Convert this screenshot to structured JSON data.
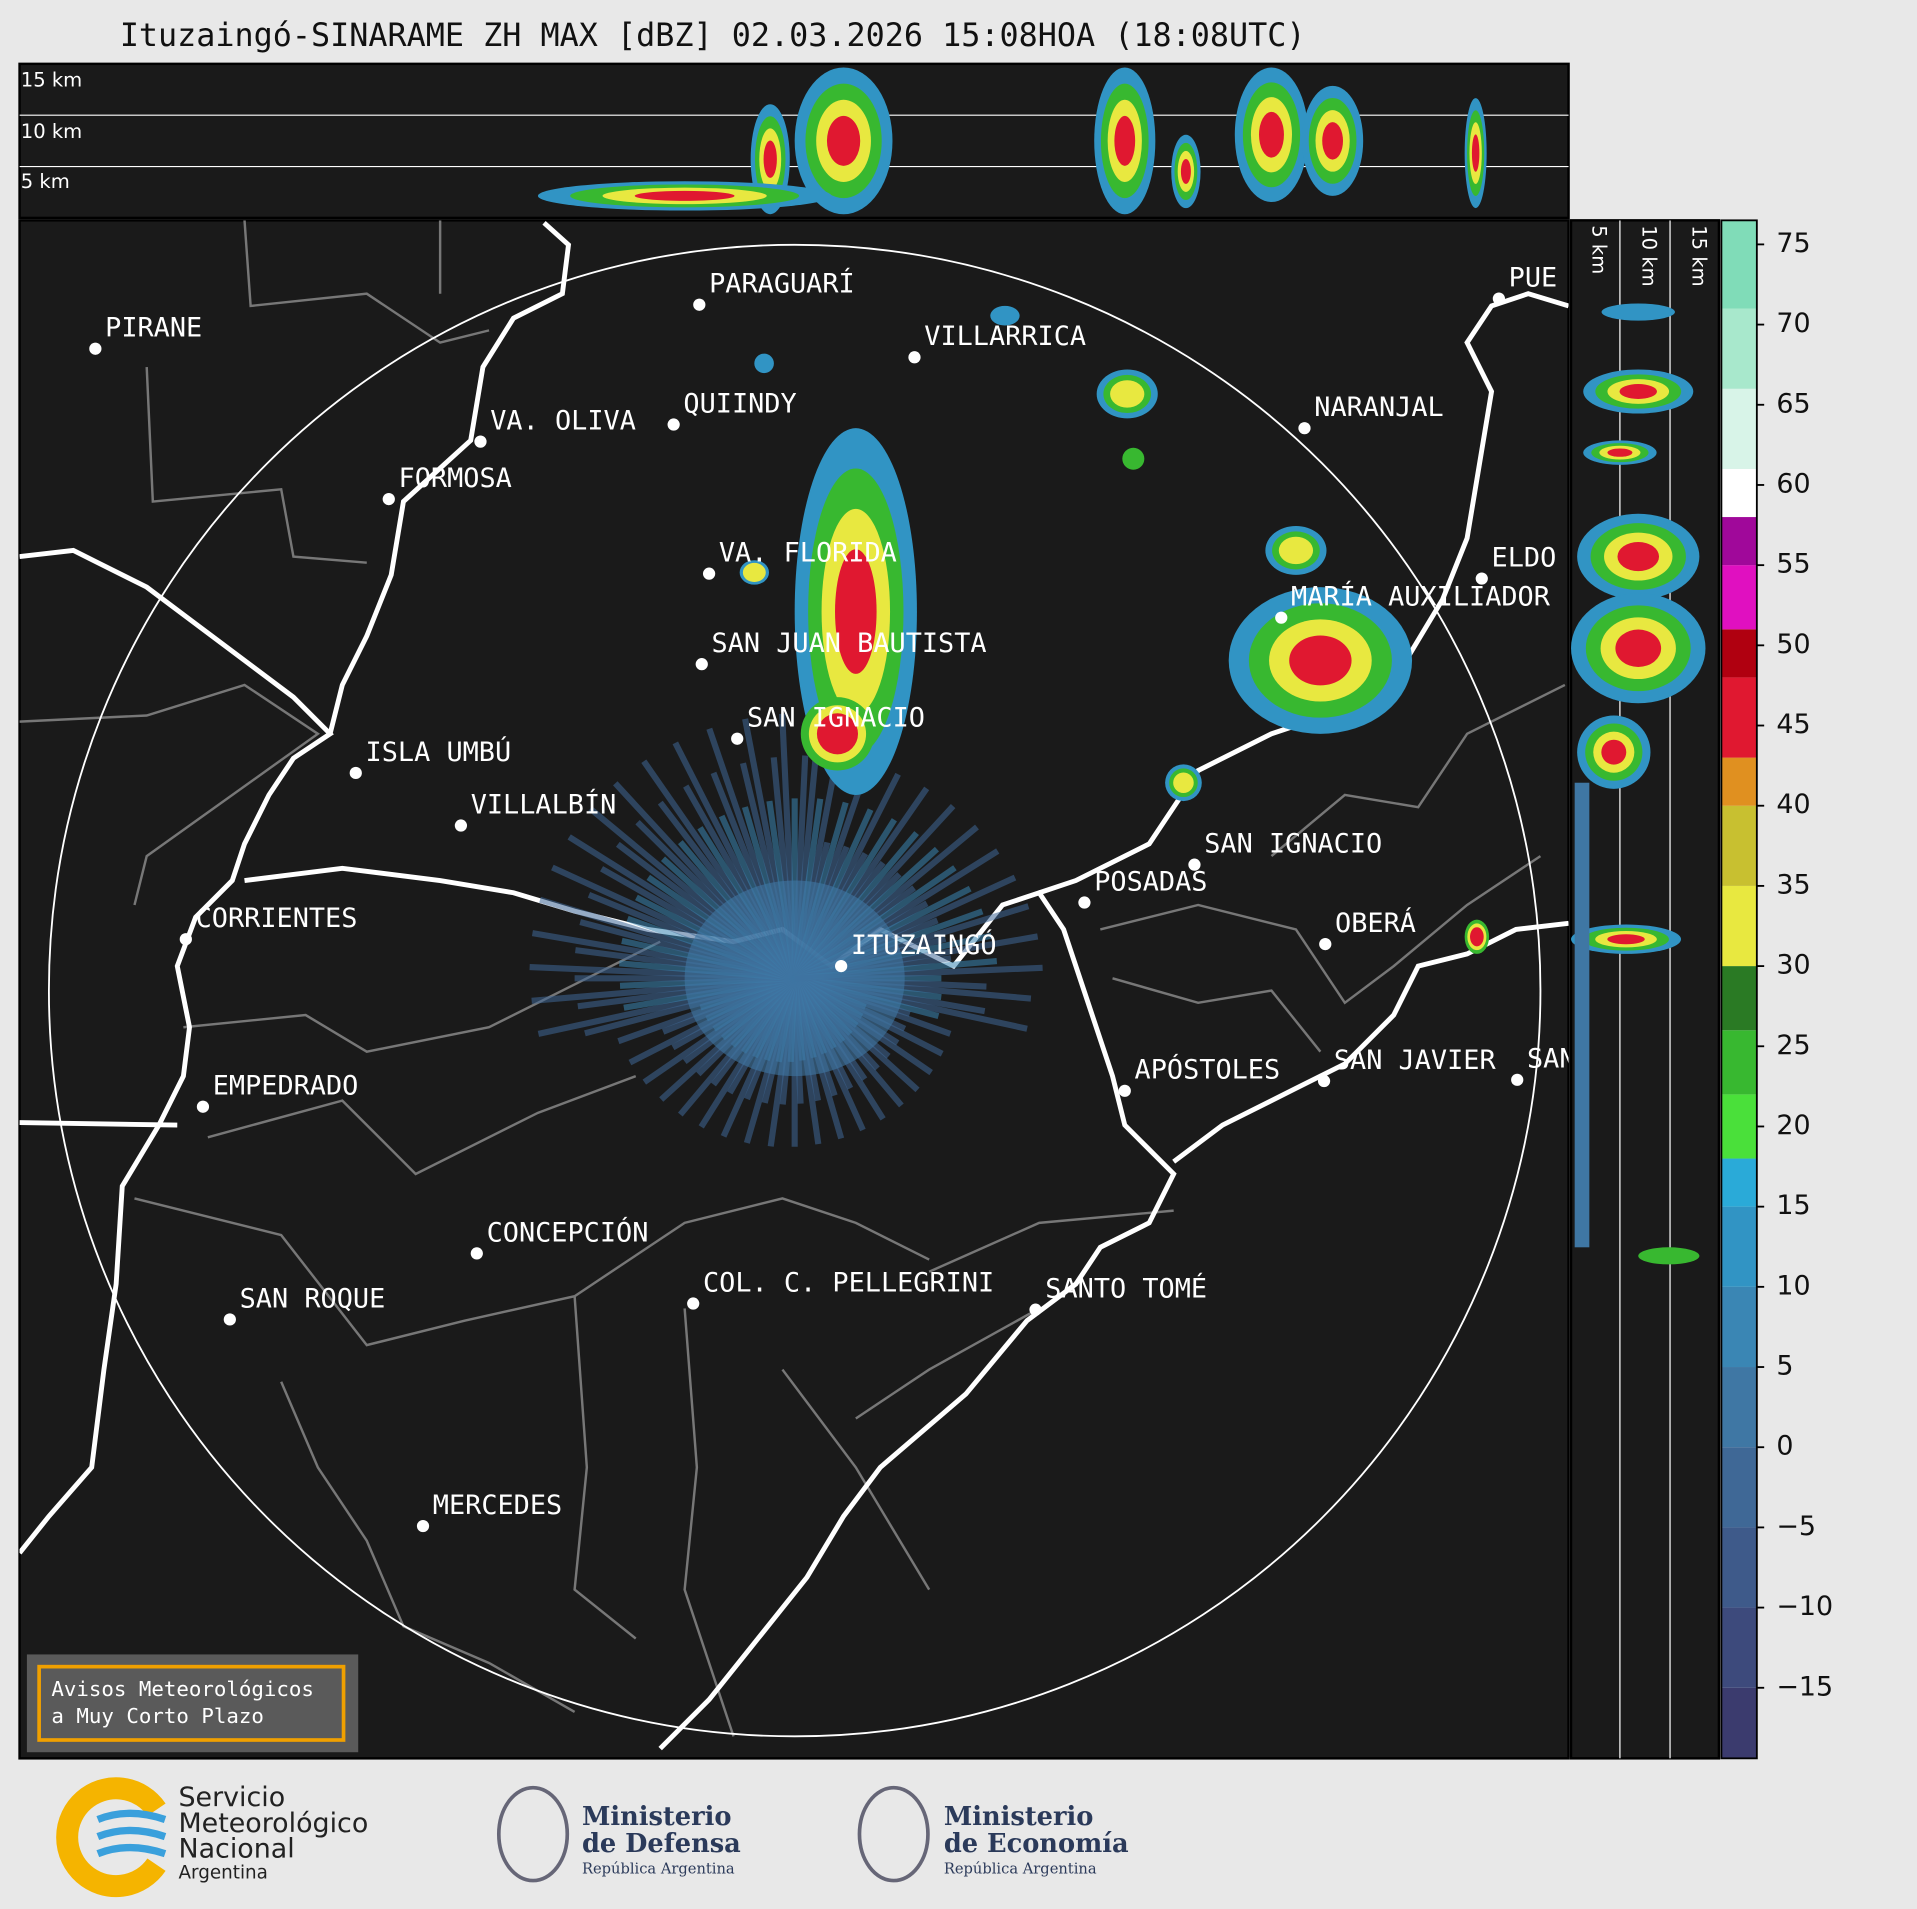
{
  "title": "Ituzaingó-SINARAME ZH MAX [dBZ] 02.03.2026 15:08HOA (18:08UTC)",
  "height_labels": {
    "top": [
      "15 km",
      "10 km",
      "5 km"
    ],
    "side": [
      "5 km",
      "10 km",
      "15 km"
    ]
  },
  "cities": [
    "PIRANE",
    "PARAGUARÍ",
    "VILLARRICA",
    "QUIINDY",
    "VA. OLIVA",
    "NARANJAL",
    "FORMOSA",
    "VA. FLORIDA",
    "ELDO",
    "MARÍA AUXILIADOR",
    "SAN JUAN BAUTISTA",
    "SAN IGNACIO",
    "ISLA UMBÚ",
    "VILLALBÍN",
    "SAN IGNACIO",
    "POSADAS",
    "CORRIENTES",
    "OBERÁ",
    "ITUZAINGÓ",
    "APÓSTOLES",
    "SAN JAVIER",
    "SAN",
    "EMPEDRADO",
    "CONCEPCIÓN",
    "COL. C. PELLEGRINI",
    "SANTO TOMÉ",
    "SAN ROQUE",
    "MERCEDES",
    "PUE"
  ],
  "colorbar": {
    "lim": [
      -19.4,
      76.5
    ],
    "ticks": [
      {
        "value": 75,
        "label": "75"
      },
      {
        "value": 70,
        "label": "70"
      },
      {
        "value": 65,
        "label": "65"
      },
      {
        "value": 60,
        "label": "60"
      },
      {
        "value": 55,
        "label": "55"
      },
      {
        "value": 50,
        "label": "50"
      },
      {
        "value": 45,
        "label": "45"
      },
      {
        "value": 40,
        "label": "40"
      },
      {
        "value": 35,
        "label": "35"
      },
      {
        "value": 30,
        "label": "30"
      },
      {
        "value": 25,
        "label": "25"
      },
      {
        "value": 20,
        "label": "20"
      },
      {
        "value": 15,
        "label": "15"
      },
      {
        "value": 10,
        "label": "10"
      },
      {
        "value": 5,
        "label": "5"
      },
      {
        "value": 0,
        "label": "0"
      },
      {
        "value": -5,
        "label": "−5"
      },
      {
        "value": -10,
        "label": "−10"
      },
      {
        "value": -15,
        "label": "−15"
      }
    ],
    "bands": [
      {
        "from": -19.4,
        "to": -15,
        "color": "#3b3b6e"
      },
      {
        "from": -15,
        "to": -10,
        "color": "#3d4a7c"
      },
      {
        "from": -10,
        "to": -5,
        "color": "#3e5a8a"
      },
      {
        "from": -5,
        "to": 0,
        "color": "#3f6896"
      },
      {
        "from": 0,
        "to": 5,
        "color": "#3f77a4"
      },
      {
        "from": 5,
        "to": 10,
        "color": "#3a86b4"
      },
      {
        "from": 10,
        "to": 15,
        "color": "#3194c4"
      },
      {
        "from": 15,
        "to": 18,
        "color": "#2aaad8"
      },
      {
        "from": 18,
        "to": 22,
        "color": "#4ae03a"
      },
      {
        "from": 22,
        "to": 26,
        "color": "#38b830"
      },
      {
        "from": 26,
        "to": 30,
        "color": "#2a7a24"
      },
      {
        "from": 30,
        "to": 35,
        "color": "#e8e840"
      },
      {
        "from": 35,
        "to": 40,
        "color": "#c8c030"
      },
      {
        "from": 40,
        "to": 43,
        "color": "#e09020"
      },
      {
        "from": 43,
        "to": 48,
        "color": "#e01830"
      },
      {
        "from": 48,
        "to": 51,
        "color": "#b00010"
      },
      {
        "from": 51,
        "to": 55,
        "color": "#e010c0"
      },
      {
        "from": 55,
        "to": 58,
        "color": "#a0089a"
      },
      {
        "from": 58,
        "to": 61,
        "color": "#ffffff"
      },
      {
        "from": 61,
        "to": 66,
        "color": "#d8f4e8"
      },
      {
        "from": 66,
        "to": 71,
        "color": "#a8e8cc"
      },
      {
        "from": 71,
        "to": 76.5,
        "color": "#80dcb8"
      }
    ]
  },
  "notice": [
    "Avisos Meteorológicos",
    "a Muy Corto Plazo"
  ],
  "logos": {
    "smn": [
      "Servicio",
      "Meteorológico",
      "Nacional",
      "Argentina"
    ],
    "defensa": [
      "Ministerio",
      "de Defensa",
      "República Argentina"
    ],
    "economia": [
      "Ministerio",
      "de Economía",
      "República Argentina"
    ]
  }
}
